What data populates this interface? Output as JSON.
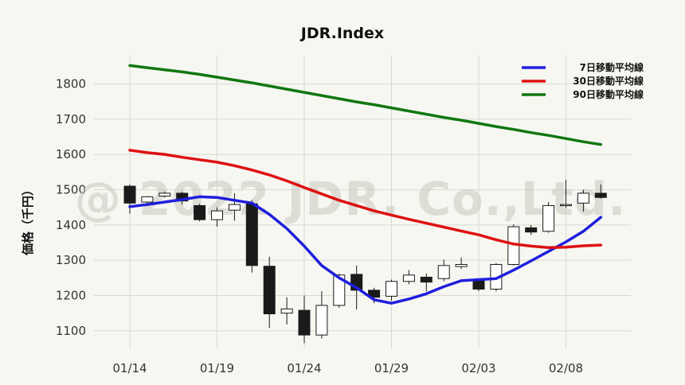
{
  "chart_data": {
    "type": "candlestick",
    "title": "JDR.Index",
    "ylabel": "価格（千円）",
    "watermark": "@ 2022 JDR. Co.,Ltd.",
    "ylim": [
      1050,
      1880
    ],
    "yticks": [
      1100,
      1200,
      1300,
      1400,
      1500,
      1600,
      1700,
      1800
    ],
    "xticks": [
      {
        "date": "01/14",
        "label": "01/14"
      },
      {
        "date": "01/19",
        "label": "01/19"
      },
      {
        "date": "01/24",
        "label": "01/24"
      },
      {
        "date": "01/29",
        "label": "01/29"
      },
      {
        "date": "02/03",
        "label": "02/03"
      },
      {
        "date": "02/08",
        "label": "02/08"
      }
    ],
    "grid": true,
    "legend_position": "top-right",
    "colors": {
      "up": "#ffffff",
      "down": "#1a1a1a",
      "ma7": "#1f1fdd",
      "ma30": "#dd1111",
      "ma90": "#117711"
    },
    "candles": [
      {
        "date": "01/14",
        "open": 1510,
        "high": 1515,
        "low": 1432,
        "close": 1462
      },
      {
        "date": "01/15",
        "open": 1465,
        "high": 1482,
        "low": 1458,
        "close": 1480
      },
      {
        "date": "01/16",
        "open": 1482,
        "high": 1495,
        "low": 1478,
        "close": 1490
      },
      {
        "date": "01/17",
        "open": 1490,
        "high": 1495,
        "low": 1458,
        "close": 1468
      },
      {
        "date": "01/18",
        "open": 1455,
        "high": 1460,
        "low": 1410,
        "close": 1415
      },
      {
        "date": "01/19",
        "open": 1415,
        "high": 1450,
        "low": 1395,
        "close": 1440
      },
      {
        "date": "01/20",
        "open": 1442,
        "high": 1490,
        "low": 1412,
        "close": 1458
      },
      {
        "date": "01/21",
        "open": 1460,
        "high": 1470,
        "low": 1265,
        "close": 1285
      },
      {
        "date": "01/22",
        "open": 1283,
        "high": 1310,
        "low": 1108,
        "close": 1148
      },
      {
        "date": "01/23",
        "open": 1150,
        "high": 1195,
        "low": 1118,
        "close": 1162
      },
      {
        "date": "01/24",
        "open": 1158,
        "high": 1200,
        "low": 1065,
        "close": 1088
      },
      {
        "date": "01/25",
        "open": 1088,
        "high": 1212,
        "low": 1078,
        "close": 1172
      },
      {
        "date": "01/26",
        "open": 1172,
        "high": 1262,
        "low": 1165,
        "close": 1258
      },
      {
        "date": "01/27",
        "open": 1260,
        "high": 1285,
        "low": 1160,
        "close": 1215
      },
      {
        "date": "01/28",
        "open": 1215,
        "high": 1222,
        "low": 1178,
        "close": 1195
      },
      {
        "date": "01/29",
        "open": 1198,
        "high": 1245,
        "low": 1185,
        "close": 1240
      },
      {
        "date": "01/30",
        "open": 1240,
        "high": 1272,
        "low": 1232,
        "close": 1258
      },
      {
        "date": "01/31",
        "open": 1252,
        "high": 1262,
        "low": 1212,
        "close": 1238
      },
      {
        "date": "02/01",
        "open": 1248,
        "high": 1302,
        "low": 1240,
        "close": 1285
      },
      {
        "date": "02/02",
        "open": 1282,
        "high": 1308,
        "low": 1275,
        "close": 1288
      },
      {
        "date": "02/03",
        "open": 1242,
        "high": 1245,
        "low": 1212,
        "close": 1218
      },
      {
        "date": "02/04",
        "open": 1218,
        "high": 1292,
        "low": 1212,
        "close": 1288
      },
      {
        "date": "02/05",
        "open": 1288,
        "high": 1402,
        "low": 1285,
        "close": 1395
      },
      {
        "date": "02/06",
        "open": 1392,
        "high": 1400,
        "low": 1372,
        "close": 1380
      },
      {
        "date": "02/07",
        "open": 1382,
        "high": 1465,
        "low": 1378,
        "close": 1455
      },
      {
        "date": "02/08",
        "open": 1455,
        "high": 1528,
        "low": 1448,
        "close": 1458
      },
      {
        "date": "02/09",
        "open": 1462,
        "high": 1500,
        "low": 1438,
        "close": 1490
      },
      {
        "date": "02/10",
        "open": 1490,
        "high": 1515,
        "low": 1475,
        "close": 1478
      }
    ],
    "series": [
      {
        "name": "7日移動平均線",
        "color": "#1f1fdd",
        "values": [
          1452,
          1458,
          1465,
          1472,
          1480,
          1478,
          1470,
          1462,
          1430,
          1390,
          1340,
          1285,
          1250,
          1222,
          1188,
          1178,
          1190,
          1205,
          1225,
          1242,
          1245,
          1248,
          1272,
          1298,
          1325,
          1352,
          1382,
          1422
        ]
      },
      {
        "name": "30日移動平均線",
        "color": "#dd1111",
        "values": [
          1612,
          1605,
          1600,
          1592,
          1585,
          1578,
          1568,
          1556,
          1542,
          1525,
          1506,
          1488,
          1470,
          1455,
          1440,
          1428,
          1416,
          1405,
          1394,
          1383,
          1372,
          1358,
          1346,
          1340,
          1336,
          1337,
          1341,
          1343
        ]
      },
      {
        "name": "90日移動平均線",
        "color": "#117711",
        "values": [
          1852,
          1846,
          1840,
          1834,
          1827,
          1819,
          1811,
          1803,
          1794,
          1785,
          1776,
          1767,
          1758,
          1749,
          1741,
          1732,
          1723,
          1714,
          1705,
          1697,
          1688,
          1679,
          1671,
          1662,
          1654,
          1645,
          1636,
          1628
        ]
      }
    ]
  }
}
